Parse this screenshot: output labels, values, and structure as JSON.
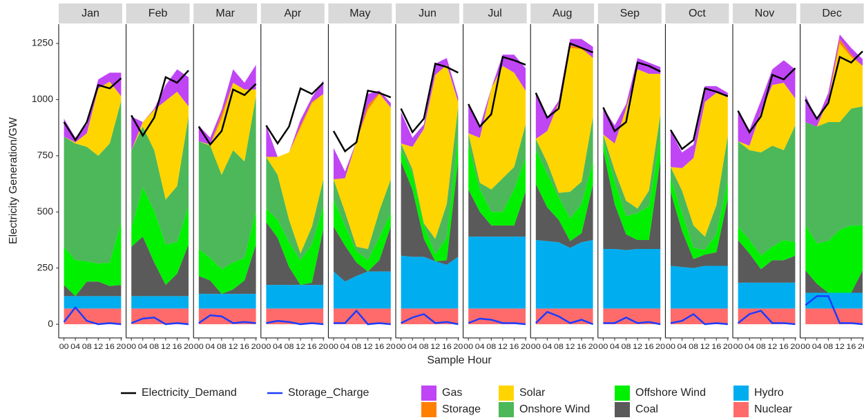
{
  "chart_data": {
    "type": "area",
    "y_label": "Electricity Generation/GW",
    "x_label": "Sample Hour",
    "facets": [
      "Jan",
      "Feb",
      "Mar",
      "Apr",
      "May",
      "Jun",
      "Jul",
      "Aug",
      "Sep",
      "Oct",
      "Nov",
      "Dec"
    ],
    "categories": [
      "00",
      "04",
      "08",
      "12",
      "16",
      "20"
    ],
    "ylim": [
      -61,
      1336
    ],
    "yticks": [
      0,
      250,
      500,
      750,
      1000,
      1250
    ],
    "series": [
      {
        "name": "Electricity_Demand",
        "type": "line",
        "color": "#000000",
        "values": [
          [
            900,
            820,
            900,
            1065,
            1050,
            1095
          ],
          [
            930,
            840,
            920,
            1100,
            1075,
            1130
          ],
          [
            880,
            800,
            860,
            1045,
            1020,
            1070
          ],
          [
            885,
            805,
            880,
            1050,
            1025,
            1075
          ],
          [
            860,
            770,
            810,
            1040,
            1030,
            1010
          ],
          [
            960,
            855,
            915,
            1160,
            1145,
            1120
          ],
          [
            980,
            880,
            935,
            1190,
            1175,
            1155
          ],
          [
            1030,
            920,
            960,
            1250,
            1230,
            1210
          ],
          [
            965,
            860,
            900,
            1165,
            1150,
            1125
          ],
          [
            865,
            780,
            820,
            1050,
            1035,
            1015
          ],
          [
            950,
            855,
            925,
            1110,
            1090,
            1140
          ],
          [
            1000,
            915,
            985,
            1190,
            1165,
            1215
          ]
        ]
      },
      {
        "name": "Storage_Charge",
        "type": "line",
        "color": "#1a3cff",
        "values": [
          [
            10,
            75,
            15,
            0,
            5,
            0
          ],
          [
            5,
            25,
            30,
            0,
            5,
            0
          ],
          [
            5,
            40,
            35,
            5,
            10,
            5
          ],
          [
            5,
            15,
            10,
            0,
            5,
            0
          ],
          [
            5,
            5,
            60,
            0,
            5,
            0
          ],
          [
            5,
            30,
            45,
            5,
            10,
            0
          ],
          [
            5,
            25,
            20,
            5,
            5,
            0
          ],
          [
            5,
            55,
            35,
            5,
            20,
            0
          ],
          [
            5,
            5,
            30,
            5,
            10,
            0
          ],
          [
            5,
            15,
            45,
            0,
            5,
            0
          ],
          [
            5,
            45,
            60,
            5,
            5,
            0
          ],
          [
            85,
            125,
            125,
            5,
            5,
            0
          ]
        ]
      },
      {
        "name": "Gas",
        "type": "area",
        "color": "#bf45f5",
        "values": [
          [
            80,
            20,
            40,
            40,
            40,
            105
          ],
          [
            150,
            0,
            5,
            70,
            100,
            130
          ],
          [
            70,
            30,
            20,
            60,
            30,
            110
          ],
          [
            140,
            0,
            0,
            25,
            20,
            60
          ],
          [
            140,
            30,
            0,
            50,
            10,
            20
          ],
          [
            140,
            40,
            20,
            50,
            30,
            20
          ],
          [
            130,
            50,
            0,
            50,
            80,
            100
          ],
          [
            200,
            60,
            10,
            30,
            40,
            50
          ],
          [
            120,
            80,
            20,
            50,
            50,
            30
          ],
          [
            160,
            70,
            60,
            70,
            30,
            20
          ],
          [
            140,
            70,
            50,
            70,
            100,
            130
          ],
          [
            120,
            30,
            30,
            20,
            30,
            30
          ]
        ]
      },
      {
        "name": "Storage",
        "type": "area",
        "color": "#ff8000",
        "values": [
          [
            0,
            0,
            0,
            0,
            0,
            0
          ],
          [
            0,
            0,
            0,
            0,
            0,
            0
          ],
          [
            0,
            0,
            20,
            0,
            0,
            0
          ],
          [
            0,
            0,
            0,
            10,
            5,
            0
          ],
          [
            0,
            0,
            0,
            20,
            5,
            0
          ],
          [
            0,
            0,
            0,
            0,
            0,
            0
          ],
          [
            0,
            0,
            0,
            0,
            0,
            0
          ],
          [
            0,
            0,
            0,
            10,
            5,
            0
          ],
          [
            0,
            0,
            0,
            0,
            0,
            0
          ],
          [
            0,
            0,
            0,
            0,
            0,
            0
          ],
          [
            0,
            0,
            0,
            0,
            0,
            0
          ],
          [
            0,
            0,
            0,
            20,
            10,
            0
          ]
        ]
      },
      {
        "name": "Solar",
        "type": "area",
        "color": "#ffd500",
        "values": [
          [
            0,
            5,
            60,
            300,
            275,
            20
          ],
          [
            0,
            20,
            180,
            440,
            420,
            45
          ],
          [
            0,
            5,
            250,
            300,
            320,
            30
          ],
          [
            0,
            80,
            300,
            560,
            550,
            380
          ],
          [
            0,
            150,
            470,
            620,
            520,
            320
          ],
          [
            0,
            100,
            420,
            730,
            620,
            20
          ],
          [
            0,
            200,
            450,
            500,
            420,
            150
          ],
          [
            0,
            140,
            400,
            640,
            590,
            260
          ],
          [
            0,
            120,
            410,
            620,
            520,
            180
          ],
          [
            0,
            100,
            300,
            600,
            500,
            170
          ],
          [
            0,
            20,
            180,
            270,
            300,
            120
          ],
          [
            0,
            0,
            100,
            350,
            230,
            180
          ]
        ]
      },
      {
        "name": "Onshore Wind",
        "type": "area",
        "color": "#4cb85a",
        "values": [
          [
            490,
            520,
            510,
            480,
            530,
            540
          ],
          [
            350,
            270,
            270,
            200,
            250,
            400
          ],
          [
            480,
            500,
            420,
            500,
            430,
            510
          ],
          [
            230,
            200,
            100,
            30,
            80,
            120
          ],
          [
            90,
            60,
            20,
            50,
            120,
            150
          ],
          [
            30,
            20,
            10,
            70,
            150,
            140
          ],
          [
            50,
            30,
            100,
            150,
            100,
            150
          ],
          [
            50,
            50,
            20,
            120,
            100,
            200
          ],
          [
            30,
            50,
            70,
            20,
            70,
            100
          ],
          [
            50,
            100,
            100,
            60,
            130,
            200
          ],
          [
            380,
            400,
            460,
            450,
            400,
            520
          ],
          [
            460,
            520,
            530,
            480,
            520,
            530
          ]
        ]
      },
      {
        "name": "Offshore Wind",
        "type": "area",
        "color": "#00f000",
        "values": [
          [
            170,
            160,
            90,
            80,
            105,
            280
          ],
          [
            80,
            220,
            230,
            180,
            140,
            170
          ],
          [
            120,
            100,
            110,
            120,
            100,
            150
          ],
          [
            60,
            80,
            110,
            110,
            170,
            100
          ],
          [
            120,
            90,
            50,
            50,
            100,
            60
          ],
          [
            50,
            70,
            60,
            30,
            100,
            100
          ],
          [
            200,
            100,
            60,
            60,
            160,
            150
          ],
          [
            150,
            150,
            100,
            100,
            130,
            100
          ],
          [
            40,
            100,
            80,
            120,
            150,
            100
          ],
          [
            60,
            80,
            50,
            20,
            80,
            80
          ],
          [
            60,
            60,
            60,
            60,
            90,
            60
          ],
          [
            200,
            180,
            230,
            280,
            300,
            200
          ]
        ]
      },
      {
        "name": "Coal",
        "type": "area",
        "color": "#5a5a5a",
        "values": [
          [
            50,
            0,
            65,
            65,
            45,
            50
          ],
          [
            220,
            265,
            150,
            50,
            100,
            230
          ],
          [
            80,
            60,
            0,
            20,
            60,
            220
          ],
          [
            280,
            210,
            80,
            0,
            10,
            250
          ],
          [
            200,
            160,
            60,
            0,
            50,
            200
          ],
          [
            420,
            300,
            80,
            0,
            20,
            430
          ],
          [
            210,
            110,
            50,
            50,
            50,
            200
          ],
          [
            250,
            150,
            100,
            30,
            40,
            250
          ],
          [
            440,
            200,
            70,
            40,
            40,
            400
          ],
          [
            330,
            160,
            40,
            50,
            60,
            300
          ],
          [
            190,
            130,
            60,
            100,
            100,
            120
          ],
          [
            100,
            40,
            0,
            0,
            0,
            100
          ]
        ]
      },
      {
        "name": "Hydro",
        "type": "area",
        "color": "#00aeef",
        "values": [
          [
            55,
            55,
            55,
            55,
            55,
            55
          ],
          [
            55,
            55,
            55,
            55,
            55,
            55
          ],
          [
            65,
            65,
            65,
            65,
            65,
            65
          ],
          [
            105,
            105,
            105,
            105,
            105,
            105
          ],
          [
            165,
            120,
            145,
            165,
            165,
            165
          ],
          [
            235,
            230,
            230,
            210,
            195,
            230
          ],
          [
            320,
            320,
            320,
            320,
            320,
            320
          ],
          [
            305,
            300,
            295,
            270,
            295,
            305
          ],
          [
            265,
            265,
            260,
            265,
            265,
            265
          ],
          [
            190,
            185,
            180,
            190,
            190,
            190
          ],
          [
            115,
            115,
            115,
            115,
            115,
            115
          ],
          [
            70,
            70,
            70,
            70,
            70,
            70
          ]
        ]
      },
      {
        "name": "Nuclear",
        "type": "area",
        "color": "#ff6b6b",
        "values": [
          [
            70,
            70,
            70,
            70,
            70,
            70
          ],
          [
            70,
            70,
            70,
            70,
            70,
            70
          ],
          [
            70,
            70,
            70,
            70,
            70,
            70
          ],
          [
            70,
            70,
            70,
            70,
            70,
            70
          ],
          [
            70,
            70,
            70,
            70,
            70,
            70
          ],
          [
            70,
            70,
            70,
            70,
            70,
            70
          ],
          [
            70,
            70,
            70,
            70,
            70,
            70
          ],
          [
            70,
            70,
            70,
            70,
            70,
            70
          ],
          [
            70,
            70,
            70,
            70,
            70,
            70
          ],
          [
            70,
            70,
            70,
            70,
            70,
            70
          ],
          [
            70,
            70,
            70,
            70,
            70,
            70
          ],
          [
            70,
            70,
            70,
            70,
            70,
            70
          ]
        ]
      }
    ]
  }
}
